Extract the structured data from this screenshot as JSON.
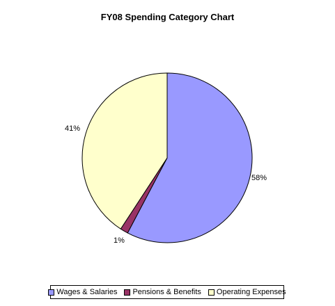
{
  "chart_data": {
    "type": "pie",
    "title": "FY08 Spending Category Chart",
    "slices": [
      {
        "name": "Wages & Salaries",
        "value": 58,
        "label": "58%",
        "color": "#9999ff"
      },
      {
        "name": "Pensions & Benefits",
        "value": 1.5,
        "label": "1%",
        "color": "#993366"
      },
      {
        "name": "Operating Expenses",
        "value": 41,
        "label": "41%",
        "color": "#ffffcc"
      }
    ],
    "legend_position": "bottom"
  }
}
